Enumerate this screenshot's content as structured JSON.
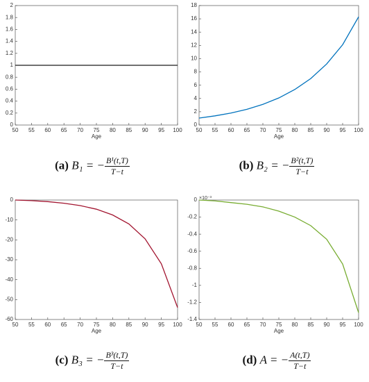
{
  "chart_data": [
    {
      "type": "line",
      "x": [
        50,
        55,
        60,
        65,
        70,
        75,
        80,
        85,
        90,
        95,
        100
      ],
      "values": [
        1,
        1,
        1,
        1,
        1,
        1,
        1,
        1,
        1,
        1,
        1
      ],
      "color": "#1a1a1a",
      "xlim": [
        50,
        100
      ],
      "xticks": [
        50,
        55,
        60,
        65,
        70,
        75,
        80,
        85,
        90,
        95,
        100
      ],
      "ylim": [
        0,
        2
      ],
      "yticks": [
        0,
        0.2,
        0.4,
        0.6,
        0.8,
        1,
        1.2,
        1.4,
        1.6,
        1.8,
        2
      ],
      "xlabel": "Age",
      "caption": {
        "label": "(a)",
        "lhs": "B₁ = −",
        "numerator": "B¹(t,T)",
        "denominator": "T−t"
      }
    },
    {
      "type": "line",
      "x": [
        50,
        55,
        60,
        65,
        70,
        75,
        80,
        85,
        90,
        95,
        100
      ],
      "values": [
        1.05,
        1.38,
        1.81,
        2.37,
        3.11,
        4.08,
        5.35,
        7.0,
        9.2,
        12.1,
        16.3
      ],
      "color": "#0072bd",
      "xlim": [
        50,
        100
      ],
      "xticks": [
        50,
        55,
        60,
        65,
        70,
        75,
        80,
        85,
        90,
        95,
        100
      ],
      "ylim": [
        0,
        18
      ],
      "yticks": [
        0,
        2,
        4,
        6,
        8,
        10,
        12,
        14,
        16,
        18
      ],
      "xlabel": "Age",
      "caption": {
        "label": "(b)",
        "lhs": "B₂ = −",
        "numerator": "B²(t,T)",
        "denominator": "T−t"
      }
    },
    {
      "type": "line",
      "x": [
        50,
        55,
        60,
        65,
        70,
        75,
        80,
        85,
        90,
        95,
        100
      ],
      "values": [
        0,
        -0.3,
        -0.8,
        -1.6,
        -2.8,
        -4.6,
        -7.5,
        -12,
        -19.5,
        -32,
        -54
      ],
      "color": "#a2142f",
      "xlim": [
        50,
        100
      ],
      "xticks": [
        50,
        55,
        60,
        65,
        70,
        75,
        80,
        85,
        90,
        95,
        100
      ],
      "ylim": [
        -60,
        0
      ],
      "yticks": [
        -60,
        -50,
        -40,
        -30,
        -20,
        -10,
        0
      ],
      "xlabel": "Age",
      "caption": {
        "label": "(c)",
        "lhs": "B₃ = −",
        "numerator": "B³(t,T)",
        "denominator": "T−t"
      }
    },
    {
      "type": "line",
      "x": [
        50,
        55,
        60,
        65,
        70,
        75,
        80,
        85,
        90,
        95,
        100
      ],
      "values": [
        0,
        -0.01,
        -0.03,
        -0.05,
        -0.08,
        -0.13,
        -0.2,
        -0.3,
        -0.46,
        -0.75,
        -1.32
      ],
      "color": "#77ac30",
      "xlim": [
        50,
        100
      ],
      "xticks": [
        50,
        55,
        60,
        65,
        70,
        75,
        80,
        85,
        90,
        95,
        100
      ],
      "ylim": [
        -1.4,
        0
      ],
      "yticks": [
        -1.4,
        -1.2,
        -1,
        -0.8,
        -0.6,
        -0.4,
        -0.2,
        0
      ],
      "y_multiplier": "×10⁻³",
      "xlabel": "Age",
      "caption": {
        "label": "(d)",
        "lhs": "A = −",
        "numerator": "A(t,T)",
        "denominator": "T−t"
      }
    }
  ]
}
